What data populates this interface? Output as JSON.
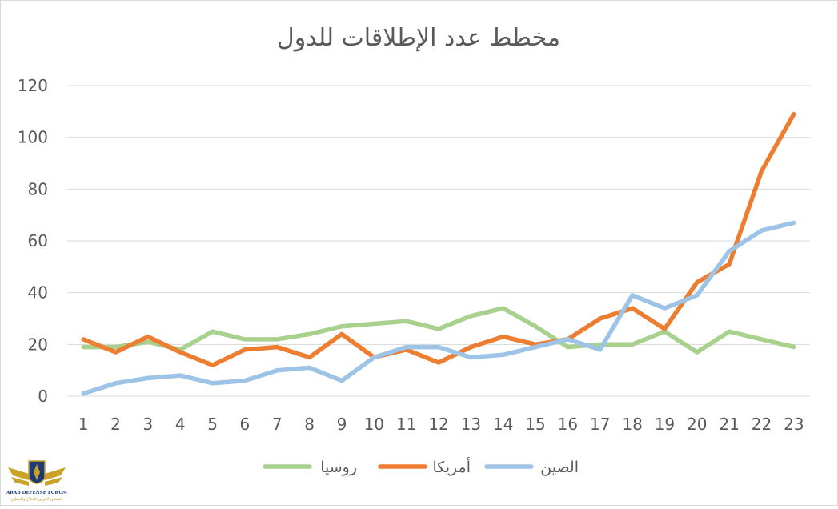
{
  "chart_data": {
    "type": "line",
    "title": "مخطط عدد الإطلاقات للدول",
    "xlabel": "",
    "ylabel": "",
    "categories": [
      "1",
      "2",
      "3",
      "4",
      "5",
      "6",
      "7",
      "8",
      "9",
      "10",
      "11",
      "12",
      "13",
      "14",
      "15",
      "16",
      "17",
      "18",
      "19",
      "20",
      "21",
      "22",
      "23"
    ],
    "ylim": [
      0,
      120
    ],
    "yticks": [
      0,
      20,
      40,
      60,
      80,
      100,
      120
    ],
    "grid": true,
    "legend": "bottom",
    "series": [
      {
        "name": "روسيا",
        "color": "#a9d18e",
        "values": [
          19,
          19,
          21,
          18,
          25,
          22,
          22,
          24,
          27,
          28,
          29,
          26,
          31,
          34,
          27,
          19,
          20,
          20,
          25,
          17,
          25,
          22,
          19
        ]
      },
      {
        "name": "أمريكا",
        "color": "#ed7d31",
        "values": [
          22,
          17,
          23,
          17,
          12,
          18,
          19,
          15,
          24,
          15,
          18,
          13,
          19,
          23,
          20,
          22,
          30,
          34,
          26,
          44,
          51,
          87,
          109
        ]
      },
      {
        "name": "الصين",
        "color": "#9dc3e6",
        "values": [
          1,
          5,
          7,
          8,
          5,
          6,
          10,
          11,
          6,
          15,
          19,
          19,
          15,
          16,
          19,
          22,
          18,
          39,
          34,
          39,
          56,
          64,
          67
        ]
      }
    ]
  },
  "watermark": {
    "line1": "ARAB DEFENSE FORUM",
    "line2": "المنتدى العربي للدفاع والتسليح",
    "colors": {
      "gold": "#c9a227",
      "navy": "#1f3b73"
    }
  }
}
